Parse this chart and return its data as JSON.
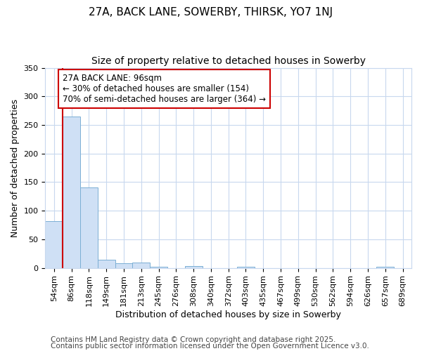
{
  "title": "27A, BACK LANE, SOWERBY, THIRSK, YO7 1NJ",
  "subtitle": "Size of property relative to detached houses in Sowerby",
  "xlabel": "Distribution of detached houses by size in Sowerby",
  "ylabel": "Number of detached properties",
  "bin_labels": [
    "54sqm",
    "86sqm",
    "118sqm",
    "149sqm",
    "181sqm",
    "213sqm",
    "245sqm",
    "276sqm",
    "308sqm",
    "340sqm",
    "372sqm",
    "403sqm",
    "435sqm",
    "467sqm",
    "499sqm",
    "530sqm",
    "562sqm",
    "594sqm",
    "626sqm",
    "657sqm",
    "689sqm"
  ],
  "bar_values": [
    82,
    265,
    141,
    14,
    8,
    9,
    2,
    0,
    3,
    0,
    0,
    2,
    0,
    0,
    0,
    0,
    0,
    0,
    0,
    2,
    0
  ],
  "bar_color": "#cfe0f5",
  "bar_edge_color": "#7bafd4",
  "ylim": [
    0,
    350
  ],
  "yticks": [
    0,
    50,
    100,
    150,
    200,
    250,
    300,
    350
  ],
  "vline_x": 0.5,
  "vline_color": "#cc0000",
  "annotation_text": "27A BACK LANE: 96sqm\n← 30% of detached houses are smaller (154)\n70% of semi-detached houses are larger (364) →",
  "footer1": "Contains HM Land Registry data © Crown copyright and database right 2025.",
  "footer2": "Contains public sector information licensed under the Open Government Licence v3.0.",
  "bg_color": "#ffffff",
  "plot_bg_color": "#ffffff",
  "grid_color": "#c8d8ee",
  "title_fontsize": 11,
  "subtitle_fontsize": 10,
  "axis_label_fontsize": 9,
  "tick_fontsize": 8,
  "annotation_fontsize": 8.5,
  "footer_fontsize": 7.5
}
